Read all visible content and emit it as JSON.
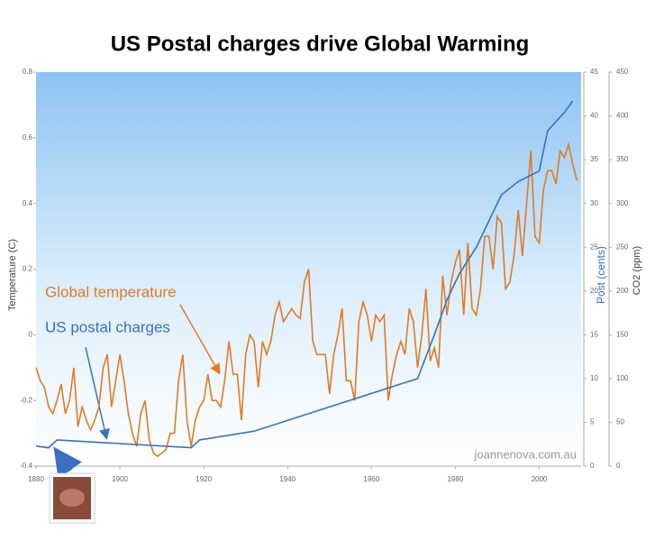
{
  "chart_data": {
    "type": "line",
    "title": "US Postal charges drive Global Warming",
    "ylabel": "Temperature (C)",
    "y2label": "Post (cents)",
    "y3label": "CO2 (ppm)",
    "watermark": "joannenova.com.au",
    "xlim": [
      1880,
      2010
    ],
    "xticks": [
      1880,
      1900,
      1920,
      1940,
      1960,
      1980,
      2000
    ],
    "ylim": [
      -0.4,
      0.8
    ],
    "yticks": [
      -0.4,
      -0.2,
      0,
      0.2,
      0.4,
      0.6,
      0.8
    ],
    "y2lim": [
      0,
      45
    ],
    "y2ticks": [
      0,
      5,
      10,
      15,
      20,
      25,
      30,
      35,
      40,
      45
    ],
    "y3lim": [
      0,
      450
    ],
    "y3ticks": [
      0,
      50,
      100,
      150,
      200,
      250,
      300,
      350,
      400,
      450
    ],
    "series": [
      {
        "name": "Global temperature",
        "color": "#e07b24",
        "x": [
          1880,
          1881,
          1882,
          1883,
          1884,
          1885,
          1886,
          1887,
          1888,
          1889,
          1890,
          1891,
          1892,
          1893,
          1894,
          1895,
          1896,
          1897,
          1898,
          1899,
          1900,
          1901,
          1902,
          1903,
          1904,
          1905,
          1906,
          1907,
          1908,
          1909,
          1910,
          1911,
          1912,
          1913,
          1914,
          1915,
          1916,
          1917,
          1918,
          1919,
          1920,
          1921,
          1922,
          1923,
          1924,
          1925,
          1926,
          1927,
          1928,
          1929,
          1930,
          1931,
          1932,
          1933,
          1934,
          1935,
          1936,
          1937,
          1938,
          1939,
          1940,
          1941,
          1942,
          1943,
          1944,
          1945,
          1946,
          1947,
          1948,
          1949,
          1950,
          1951,
          1952,
          1953,
          1954,
          1955,
          1956,
          1957,
          1958,
          1959,
          1960,
          1961,
          1962,
          1963,
          1964,
          1965,
          1966,
          1967,
          1968,
          1969,
          1970,
          1971,
          1972,
          1973,
          1974,
          1975,
          1976,
          1977,
          1978,
          1979,
          1980,
          1981,
          1982,
          1983,
          1984,
          1985,
          1986,
          1987,
          1988,
          1989,
          1990,
          1991,
          1992,
          1993,
          1994,
          1995,
          1996,
          1997,
          1998,
          1999,
          2000,
          2001,
          2002,
          2003,
          2004,
          2005,
          2006,
          2007,
          2008,
          2009
        ],
        "values": [
          -0.1,
          -0.14,
          -0.16,
          -0.22,
          -0.24,
          -0.2,
          -0.15,
          -0.24,
          -0.2,
          -0.1,
          -0.28,
          -0.22,
          -0.26,
          -0.29,
          -0.26,
          -0.22,
          -0.1,
          -0.06,
          -0.22,
          -0.14,
          -0.06,
          -0.14,
          -0.24,
          -0.3,
          -0.34,
          -0.24,
          -0.2,
          -0.32,
          -0.36,
          -0.37,
          -0.36,
          -0.35,
          -0.3,
          -0.3,
          -0.14,
          -0.06,
          -0.26,
          -0.34,
          -0.26,
          -0.22,
          -0.2,
          -0.12,
          -0.2,
          -0.2,
          -0.22,
          -0.14,
          -0.02,
          -0.12,
          -0.12,
          -0.26,
          -0.06,
          0.0,
          -0.02,
          -0.16,
          -0.02,
          -0.06,
          -0.02,
          0.06,
          0.1,
          0.04,
          0.06,
          0.08,
          0.06,
          0.05,
          0.16,
          0.2,
          -0.02,
          -0.06,
          -0.06,
          -0.06,
          -0.18,
          -0.06,
          0.0,
          0.08,
          -0.14,
          -0.14,
          -0.2,
          0.04,
          0.1,
          0.06,
          -0.02,
          0.06,
          0.04,
          0.06,
          -0.2,
          -0.12,
          -0.06,
          -0.02,
          -0.06,
          0.08,
          0.04,
          -0.1,
          0.0,
          0.14,
          -0.08,
          -0.04,
          -0.1,
          0.18,
          0.06,
          0.16,
          0.22,
          0.26,
          0.06,
          0.28,
          0.08,
          0.06,
          0.14,
          0.3,
          0.3,
          0.2,
          0.36,
          0.34,
          0.14,
          0.16,
          0.24,
          0.38,
          0.24,
          0.4,
          0.56,
          0.3,
          0.28,
          0.44,
          0.5,
          0.5,
          0.46,
          0.56,
          0.54,
          0.58,
          0.52,
          0.47
        ]
      },
      {
        "name": "US postal charges",
        "color": "#3a6fc4",
        "axis": "y2",
        "x": [
          1880,
          1883,
          1885,
          1917,
          1919,
          1932,
          1971,
          1975,
          1978,
          1981,
          1985,
          1988,
          1991,
          1995,
          2000,
          2002,
          2006,
          2008
        ],
        "values": [
          2.3,
          2.1,
          3,
          2.1,
          3,
          4,
          10,
          15,
          19,
          22,
          25,
          28,
          31,
          32.5,
          33.7,
          38.3,
          40.4,
          41.7
        ]
      }
    ]
  }
}
